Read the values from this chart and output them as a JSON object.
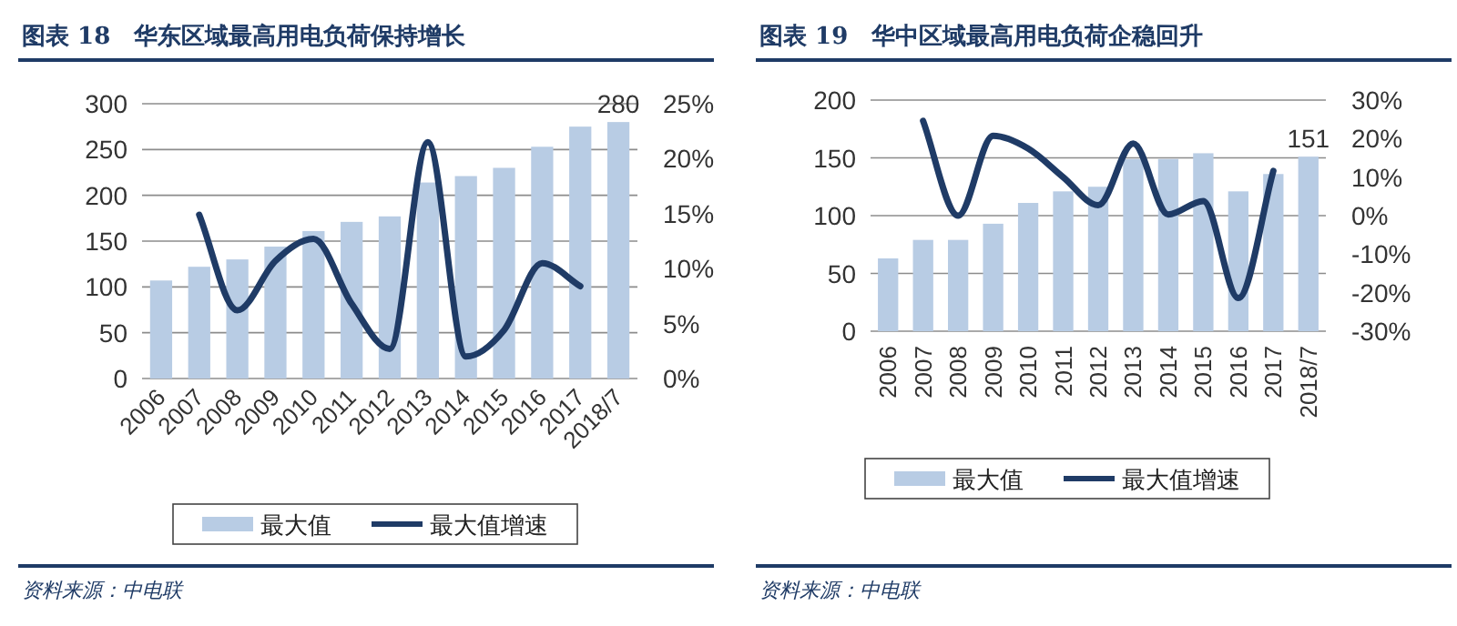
{
  "chart_data": [
    {
      "type": "bar",
      "title": "图表 18　华东区域最高用电负荷保持增长",
      "categories": [
        "2006",
        "2007",
        "2008",
        "2009",
        "2010",
        "2011",
        "2012",
        "2013",
        "2014",
        "2015",
        "2016",
        "2017",
        "2018/7"
      ],
      "series": [
        {
          "name": "最大值",
          "color": "#b8cce4",
          "values": [
            107,
            122,
            130,
            144,
            161,
            171,
            177,
            214,
            221,
            230,
            253,
            275,
            280
          ],
          "value_labels": [
            null,
            null,
            null,
            null,
            null,
            null,
            null,
            null,
            null,
            null,
            null,
            null,
            "280"
          ]
        },
        {
          "name": "最大值增速",
          "type": "line",
          "axis": "y2",
          "color": "#1f3b66",
          "values": [
            null,
            14.9,
            6.2,
            10.7,
            12.7,
            6.8,
            2.7,
            21.5,
            2.0,
            4.4,
            10.5,
            8.4,
            null
          ]
        }
      ],
      "ylim": [
        0,
        300
      ],
      "yticks": [
        0,
        50,
        100,
        150,
        200,
        250,
        300
      ],
      "y2lim": [
        0,
        25
      ],
      "y2ticks": [
        {
          "value": 0,
          "label": "0%"
        },
        {
          "value": 5,
          "label": "5%"
        },
        {
          "value": 10,
          "label": "10%"
        },
        {
          "value": 15,
          "label": "15%"
        },
        {
          "value": 20,
          "label": "20%"
        },
        {
          "value": 25,
          "label": "25%"
        }
      ],
      "grid": "y",
      "legend": "bottom",
      "marker": "none",
      "line_style": "solid",
      "annotations": [
        "资料来源：中电联"
      ]
    },
    {
      "type": "bar",
      "title": "图表 19　华中区域最高用电负荷企稳回升",
      "categories": [
        "2006",
        "2007",
        "2008",
        "2009",
        "2010",
        "2011",
        "2012",
        "2013",
        "2014",
        "2015",
        "2016",
        "2017",
        "2018/7"
      ],
      "series": [
        {
          "name": "最大值",
          "color": "#b8cce4",
          "values": [
            63,
            79,
            79,
            93,
            111,
            121,
            125,
            149,
            149,
            154,
            121,
            136,
            151
          ],
          "value_labels": [
            null,
            null,
            null,
            null,
            null,
            null,
            null,
            null,
            null,
            null,
            null,
            null,
            "151"
          ]
        },
        {
          "name": "最大值增速",
          "type": "line",
          "axis": "y2",
          "color": "#1f3b66",
          "values": [
            null,
            24.6,
            0,
            20.7,
            17.4,
            10,
            2.7,
            18.7,
            0.3,
            3.8,
            -21.4,
            11.6,
            null
          ]
        }
      ],
      "ylim": [
        0,
        200
      ],
      "yticks": [
        0,
        50,
        100,
        150,
        200
      ],
      "y2lim": [
        -30,
        30
      ],
      "y2ticks": [
        {
          "value": -30,
          "label": "-30%"
        },
        {
          "value": -20,
          "label": "-20%"
        },
        {
          "value": -10,
          "label": "-10%"
        },
        {
          "value": 0,
          "label": "0%"
        },
        {
          "value": 10,
          "label": "10%"
        },
        {
          "value": 20,
          "label": "20%"
        },
        {
          "value": 30,
          "label": "30%"
        }
      ],
      "grid": "y",
      "legend": "bottom",
      "marker": "none",
      "line_style": "solid",
      "annotations": [
        "资料来源：中电联"
      ]
    }
  ]
}
